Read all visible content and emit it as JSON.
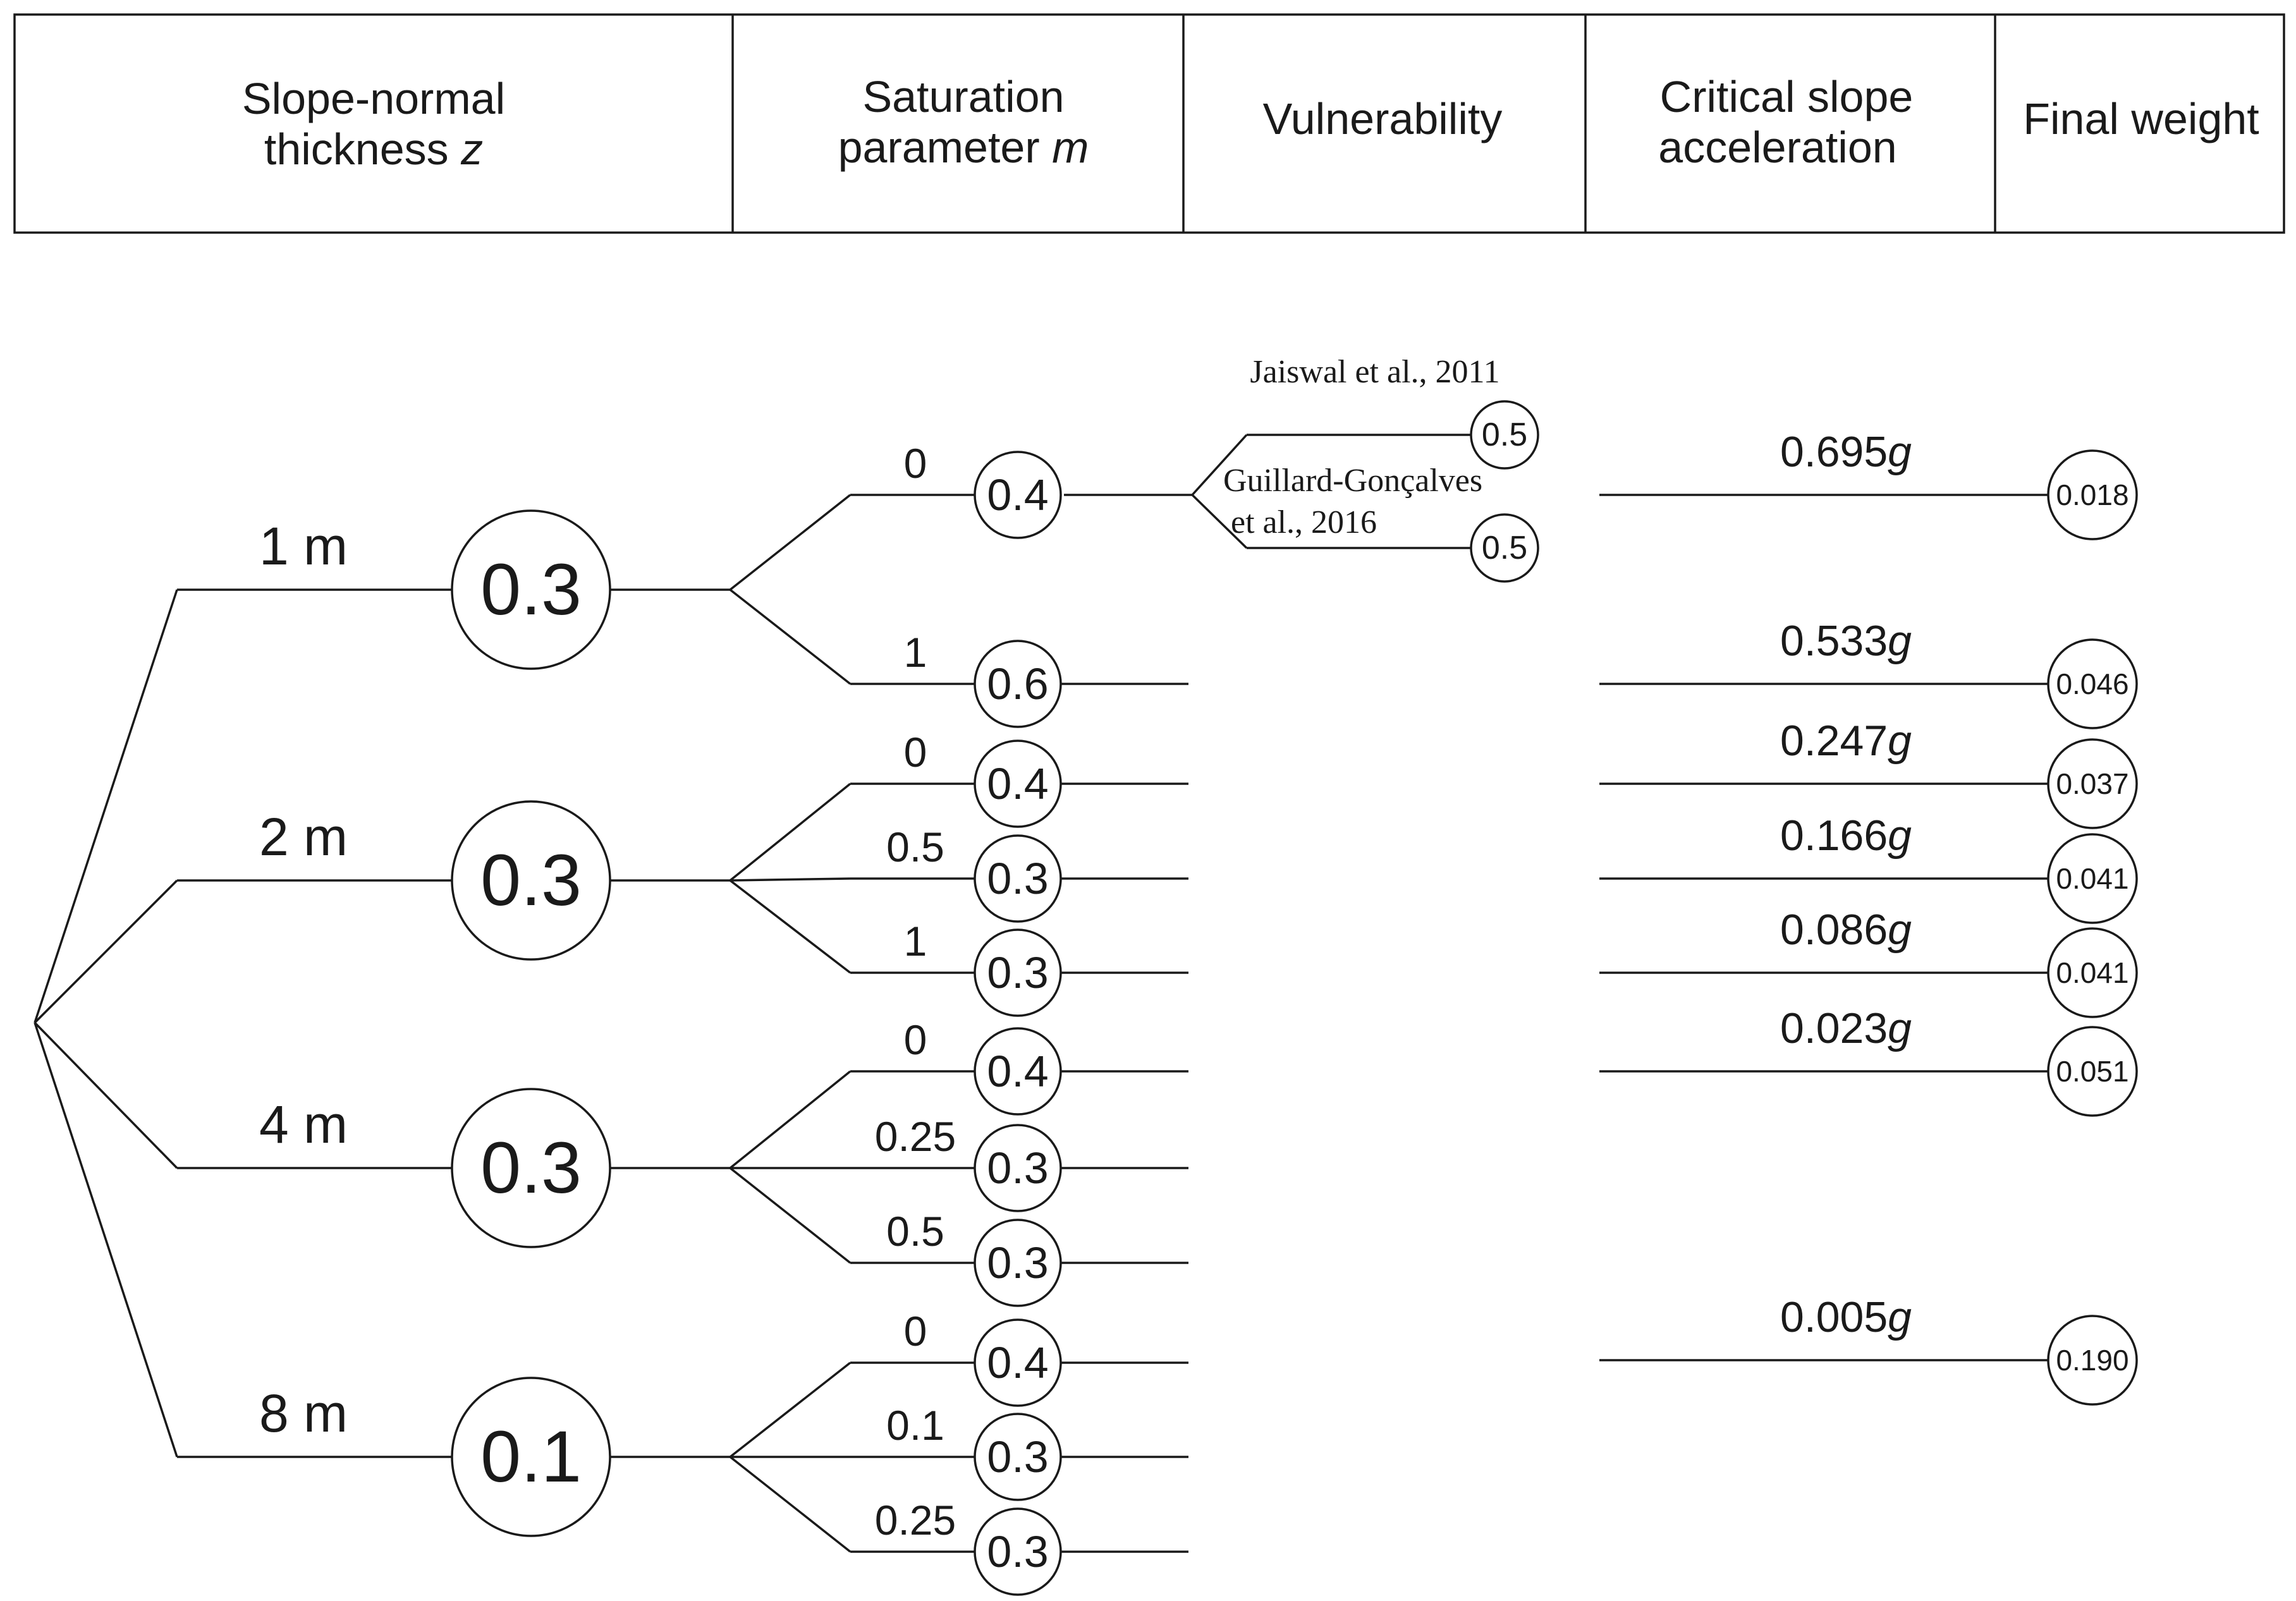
{
  "header": {
    "col1": {
      "line1": "Slope-normal",
      "line2": "thickness",
      "var": "z"
    },
    "col2": {
      "line1": "Saturation",
      "line2": "parameter",
      "var": "m"
    },
    "col3": {
      "line1": "Vulnerability"
    },
    "col4": {
      "line1": "Critical slope",
      "line2": "acceleration"
    },
    "col5": {
      "line1": "Final weight"
    }
  },
  "thickness_branches": [
    {
      "label": "1 m",
      "weight": "0.3",
      "saturation": [
        {
          "m": "0",
          "weight": "0.4"
        },
        {
          "m": "1",
          "weight": "0.6"
        }
      ]
    },
    {
      "label": "2 m",
      "weight": "0.3",
      "saturation": [
        {
          "m": "0",
          "weight": "0.4"
        },
        {
          "m": "0.5",
          "weight": "0.3"
        },
        {
          "m": "1",
          "weight": "0.3"
        }
      ]
    },
    {
      "label": "4 m",
      "weight": "0.3",
      "saturation": [
        {
          "m": "0",
          "weight": "0.4"
        },
        {
          "m": "0.25",
          "weight": "0.3"
        },
        {
          "m": "0.5",
          "weight": "0.3"
        }
      ]
    },
    {
      "label": "8 m",
      "weight": "0.1",
      "saturation": [
        {
          "m": "0",
          "weight": "0.4"
        },
        {
          "m": "0.1",
          "weight": "0.3"
        },
        {
          "m": "0.25",
          "weight": "0.3"
        }
      ]
    }
  ],
  "vulnerability": [
    {
      "line1": "Jaiswal et al., 2011",
      "line2": "",
      "weight": "0.5"
    },
    {
      "line1": "Guillard-Gonçalves",
      "line2": "et al., 2016",
      "weight": "0.5"
    }
  ],
  "critical_accelerations": [
    {
      "value": "0.695",
      "unit": "g",
      "final_weight": "0.018"
    },
    {
      "value": "0.533",
      "unit": "g",
      "final_weight": "0.046"
    },
    {
      "value": "0.247",
      "unit": "g",
      "final_weight": "0.037"
    },
    {
      "value": "0.166",
      "unit": "g",
      "final_weight": "0.041"
    },
    {
      "value": "0.086",
      "unit": "g",
      "final_weight": "0.041"
    },
    {
      "value": "0.023",
      "unit": "g",
      "final_weight": "0.051"
    },
    {
      "value": "0.005",
      "unit": "g",
      "final_weight": "0.190"
    }
  ]
}
